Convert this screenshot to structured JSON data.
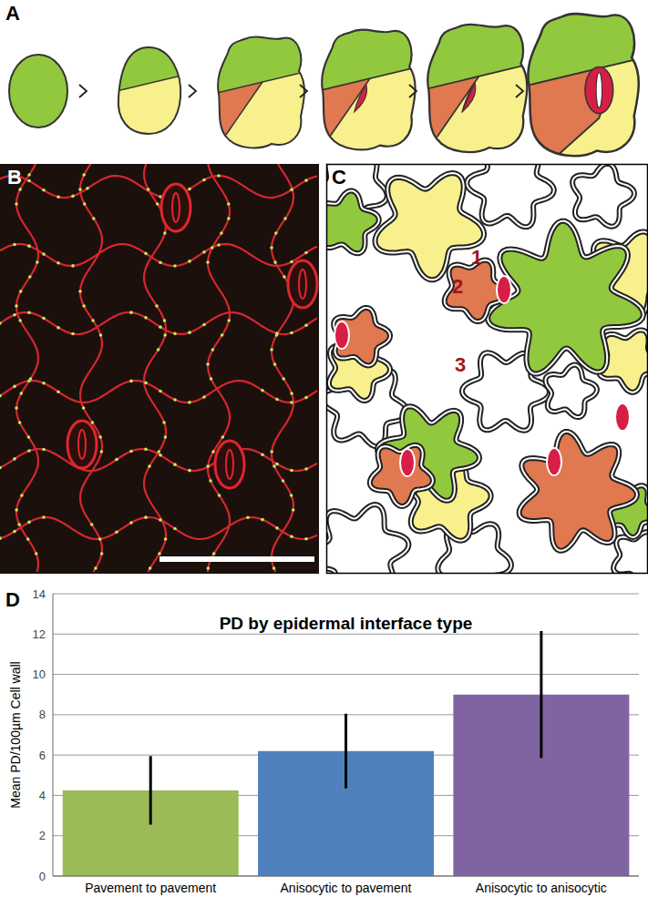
{
  "panel_labels": [
    "A",
    "B",
    "C",
    "D"
  ],
  "cell_labels": [
    "1",
    "2",
    "3"
  ],
  "chart_data": {
    "type": "bar",
    "title": "PD by epidermal interface type",
    "y_label": "Mean PD/100µm Cell wall",
    "categories": [
      "Pavement to pavement",
      "Anisocytic to pavement",
      "Anisocytic to anisocytic"
    ],
    "values": [
      4.25,
      6.2,
      9.0
    ],
    "error": [
      1.7,
      1.85,
      3.15
    ],
    "colors": [
      "#9bbb59",
      "#4f81bd",
      "#8064a2"
    ],
    "ylim": [
      0,
      14
    ],
    "yticks": [
      0,
      2,
      4,
      6,
      8,
      10,
      12,
      14
    ],
    "grid": true
  }
}
